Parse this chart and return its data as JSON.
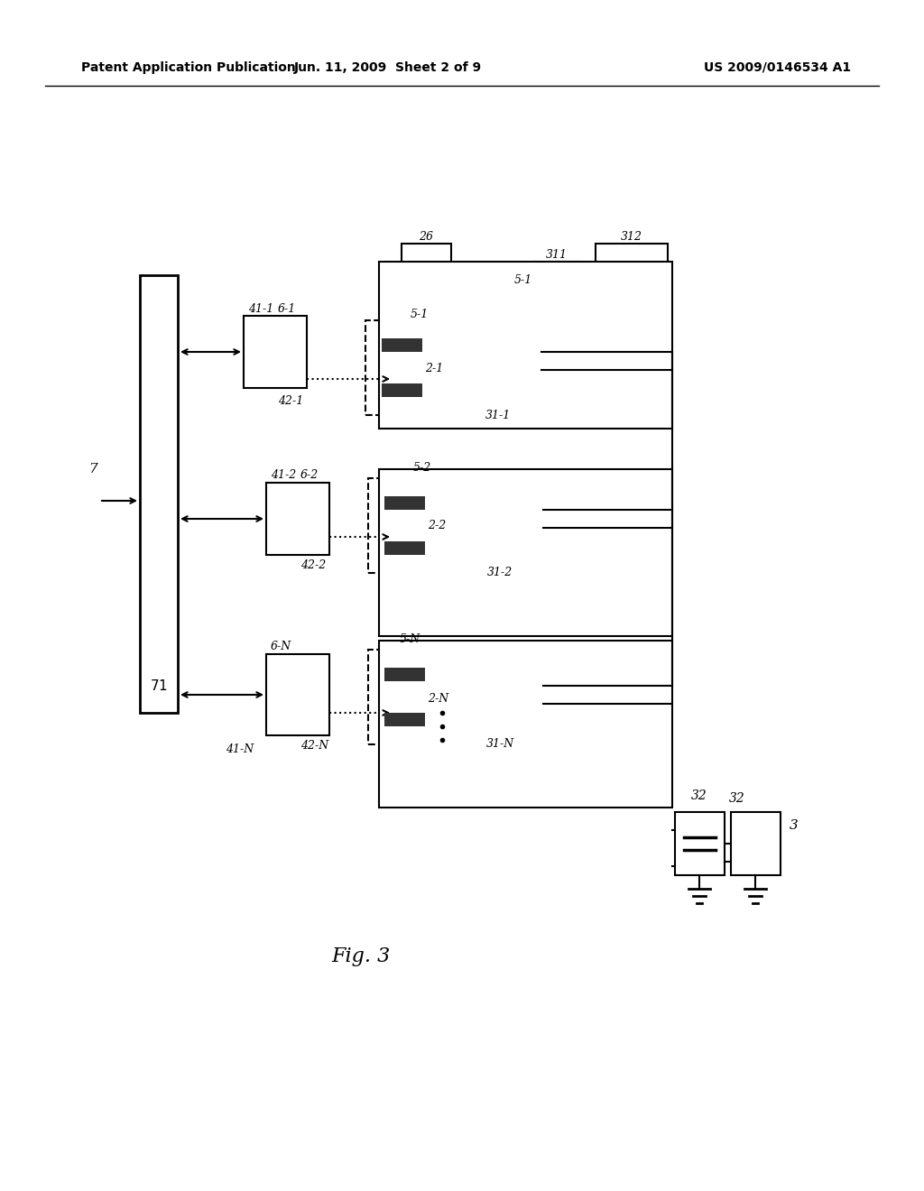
{
  "header_left": "Patent Application Publication",
  "header_mid": "Jun. 11, 2009  Sheet 2 of 9",
  "header_right": "US 2009/0146534 A1",
  "figure_label": "Fig. 3",
  "bg_color": "#ffffff",
  "line_color": "#000000",
  "text_color": "#000000"
}
